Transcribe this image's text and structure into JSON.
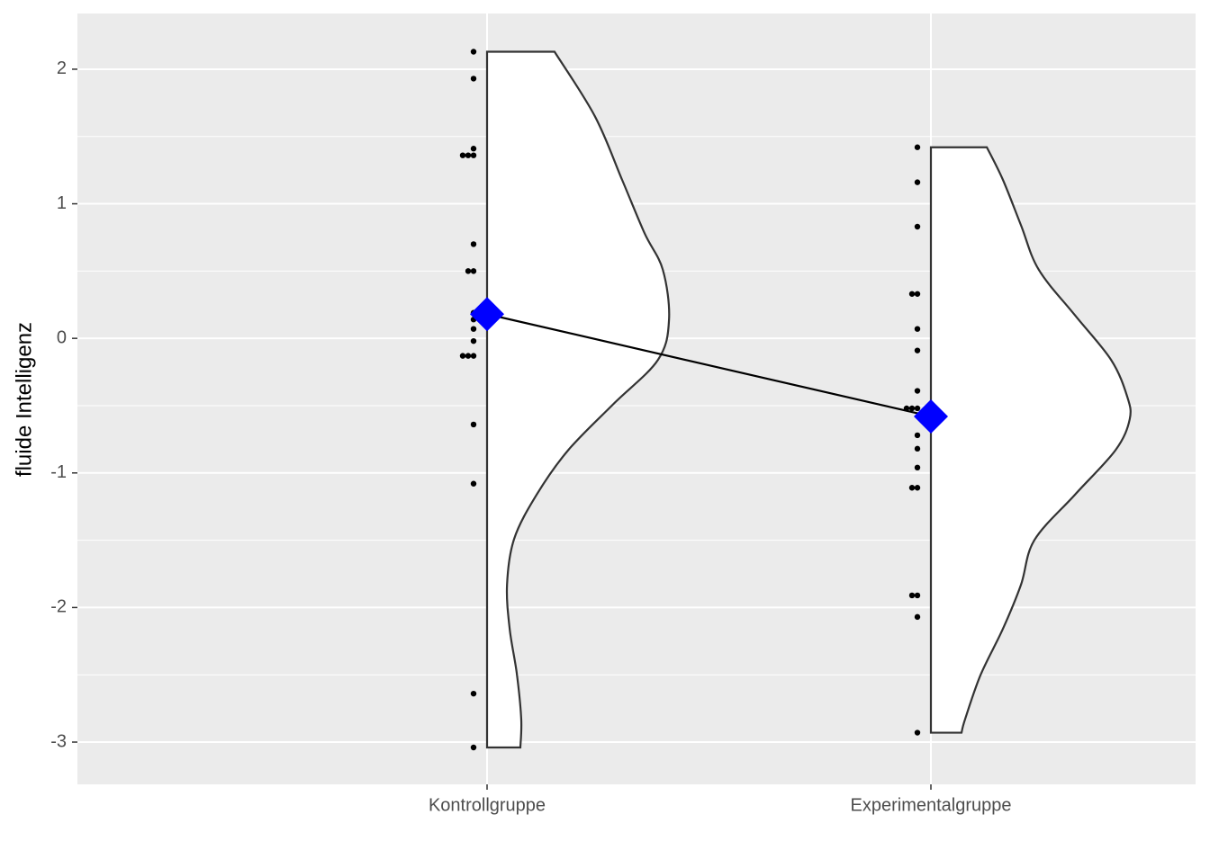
{
  "chart_data": {
    "type": "violin",
    "ylabel": "fluide Intelligenz",
    "categories": [
      "Kontrollgruppe",
      "Experimentalgruppe"
    ],
    "points": [
      [
        2.13,
        1.93,
        1.41,
        1.36,
        1.36,
        1.36,
        0.7,
        0.5,
        0.5,
        0.19,
        0.14,
        0.07,
        -0.02,
        -0.13,
        -0.13,
        -0.13,
        -0.64,
        -1.08,
        -2.64,
        -3.04
      ],
      [
        1.42,
        1.16,
        0.83,
        0.33,
        0.33,
        0.07,
        -0.09,
        -0.39,
        -0.52,
        -0.52,
        -0.52,
        -0.72,
        -0.82,
        -0.96,
        -1.11,
        -1.11,
        -1.91,
        -1.91,
        -2.07,
        -2.93
      ]
    ],
    "means": [
      0.18,
      -0.58
    ],
    "mean_color": "#0000ff",
    "violin": [
      {
        "y": [
          2.13,
          1.65,
          1.18,
          0.78,
          0.51,
          0.14,
          -0.16,
          -0.49,
          -0.83,
          -1.16,
          -1.49,
          -1.83,
          -2.16,
          -2.49,
          -2.83,
          -3.04
        ],
        "width": [
          0.152,
          0.243,
          0.304,
          0.355,
          0.396,
          0.41,
          0.385,
          0.284,
          0.183,
          0.112,
          0.061,
          0.045,
          0.051,
          0.067,
          0.077,
          0.075
        ]
      },
      {
        "y": [
          1.42,
          1.18,
          0.84,
          0.51,
          0.17,
          -0.16,
          -0.43,
          -0.6,
          -0.83,
          -1.16,
          -1.5,
          -1.83,
          -2.16,
          -2.5,
          -2.83,
          -2.93
        ],
        "width": [
          0.126,
          0.162,
          0.203,
          0.243,
          0.325,
          0.406,
          0.442,
          0.448,
          0.416,
          0.325,
          0.233,
          0.203,
          0.162,
          0.112,
          0.077,
          0.069
        ]
      }
    ],
    "ylim": [
      -3.314,
      2.414
    ],
    "yticks": [
      -3,
      -2,
      -1,
      0,
      1,
      2
    ],
    "grid": true
  }
}
